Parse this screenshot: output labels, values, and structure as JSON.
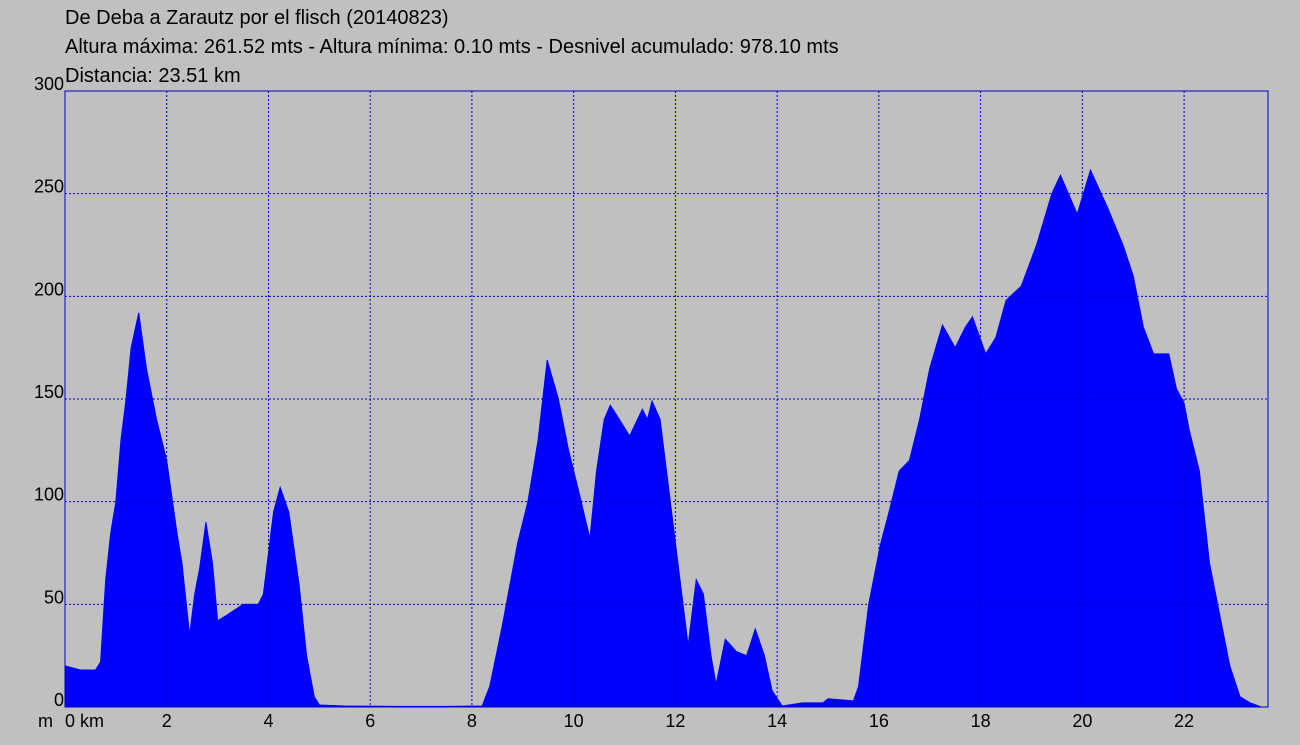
{
  "chart_data": {
    "type": "area",
    "title": "De Deba a Zarautz por el flisch (20140823)",
    "subtitle": "Altura máxima: 261.52 mts - Altura mínima: 0.10 mts - Desnivel acumulado: 978.10 mts",
    "distance": "Distancia: 23.51 km",
    "y_label": "m",
    "color": "#0000ff",
    "grid": true,
    "x": [
      0,
      0.3,
      0.6,
      0.7,
      0.8,
      0.9,
      1.0,
      1.1,
      1.2,
      1.3,
      1.45,
      1.6,
      1.8,
      2.0,
      2.2,
      2.3,
      2.45,
      2.55,
      2.65,
      2.77,
      2.9,
      3.0,
      3.2,
      3.5,
      3.8,
      3.9,
      4.0,
      4.1,
      4.23,
      4.4,
      4.6,
      4.75,
      4.9,
      5.0,
      5.5,
      6.5,
      7.5,
      8.2,
      8.35,
      8.6,
      8.9,
      9.1,
      9.3,
      9.48,
      9.7,
      9.9,
      10.1,
      10.32,
      10.45,
      10.6,
      10.72,
      10.9,
      11.1,
      11.35,
      11.45,
      11.54,
      11.7,
      11.9,
      12.05,
      12.25,
      12.41,
      12.55,
      12.7,
      12.8,
      12.98,
      13.2,
      13.4,
      13.57,
      13.75,
      13.9,
      14.1,
      14.5,
      14.9,
      15.0,
      15.5,
      15.6,
      15.8,
      16.03,
      16.2,
      16.4,
      16.6,
      16.8,
      17.0,
      17.25,
      17.5,
      17.7,
      17.84,
      18.1,
      18.3,
      18.5,
      18.8,
      19.1,
      19.4,
      19.57,
      19.9,
      20.16,
      20.5,
      20.8,
      21.0,
      21.2,
      21.4,
      21.7,
      21.85,
      22.0,
      22.1,
      22.3,
      22.5,
      22.7,
      22.9,
      23.1,
      23.3,
      23.51
    ],
    "values": [
      20,
      18,
      18,
      22,
      62,
      85,
      100,
      130,
      150,
      175,
      192,
      165,
      140,
      120,
      85,
      70,
      35,
      55,
      68,
      90,
      70,
      42,
      45,
      50,
      50,
      55,
      75,
      95,
      107,
      95,
      60,
      25,
      5,
      1,
      0.5,
      0.3,
      0.3,
      0.5,
      10,
      40,
      80,
      100,
      130,
      169,
      150,
      125,
      105,
      82,
      115,
      140,
      147,
      140,
      132,
      145,
      140,
      149,
      140,
      100,
      70,
      30,
      62,
      55,
      25,
      11,
      33,
      27,
      25,
      38,
      25,
      8,
      0.5,
      2,
      2,
      4,
      3,
      10,
      50,
      79,
      95,
      115,
      120,
      140,
      165,
      186,
      175,
      185,
      190,
      172,
      180,
      198,
      205,
      225,
      250,
      259,
      240,
      261.52,
      243,
      225,
      210,
      185,
      172,
      172,
      155,
      148,
      135,
      115,
      70,
      45,
      20,
      5,
      2,
      0.1
    ],
    "xlim": [
      0,
      23.65
    ],
    "ylim": [
      0,
      300
    ],
    "xticks": [
      {
        "value": 0,
        "label": "0 km"
      },
      2,
      4,
      6,
      8,
      10,
      12,
      14,
      16,
      18,
      20,
      22
    ],
    "yticks": [
      0,
      50,
      100,
      150,
      200,
      250,
      300
    ]
  }
}
